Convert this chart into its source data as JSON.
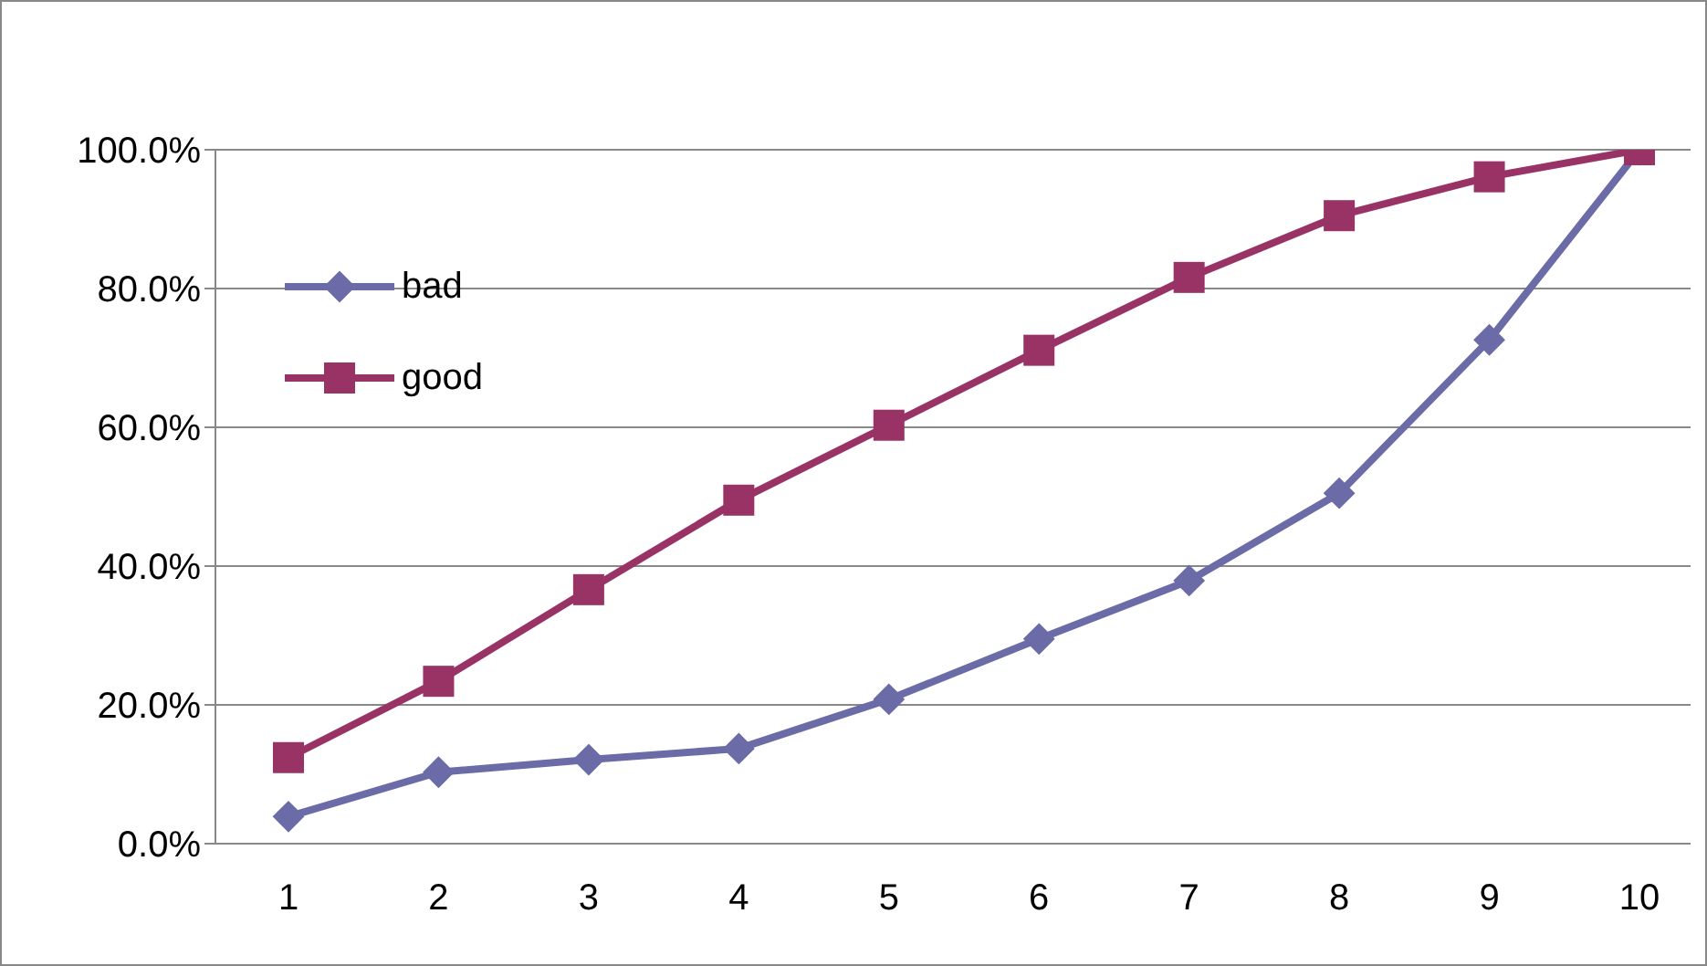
{
  "chart_data": {
    "type": "line",
    "categories": [
      "1",
      "2",
      "3",
      "4",
      "5",
      "6",
      "7",
      "8",
      "9",
      "10"
    ],
    "series": [
      {
        "name": "bad",
        "color": "#6b6ba8",
        "marker": "diamond",
        "values": [
          3.9,
          10.3,
          12.1,
          13.7,
          20.8,
          29.5,
          37.9,
          50.5,
          72.6,
          100
        ]
      },
      {
        "name": "good",
        "color": "#993366",
        "marker": "square",
        "values": [
          12.4,
          23.4,
          36.6,
          49.5,
          60.3,
          71.1,
          81.6,
          90.5,
          96.1,
          100
        ]
      }
    ],
    "ylim": [
      0,
      100
    ],
    "yticks": [
      {
        "value": 0,
        "label": "0.0%"
      },
      {
        "value": 20,
        "label": "20.0%"
      },
      {
        "value": 40,
        "label": "40.0%"
      },
      {
        "value": 60,
        "label": "60.0%"
      },
      {
        "value": 80,
        "label": "80.0%"
      },
      {
        "value": 100,
        "label": "100.0%"
      }
    ],
    "grid": "y",
    "legend": "top left",
    "line_style": "solid"
  }
}
